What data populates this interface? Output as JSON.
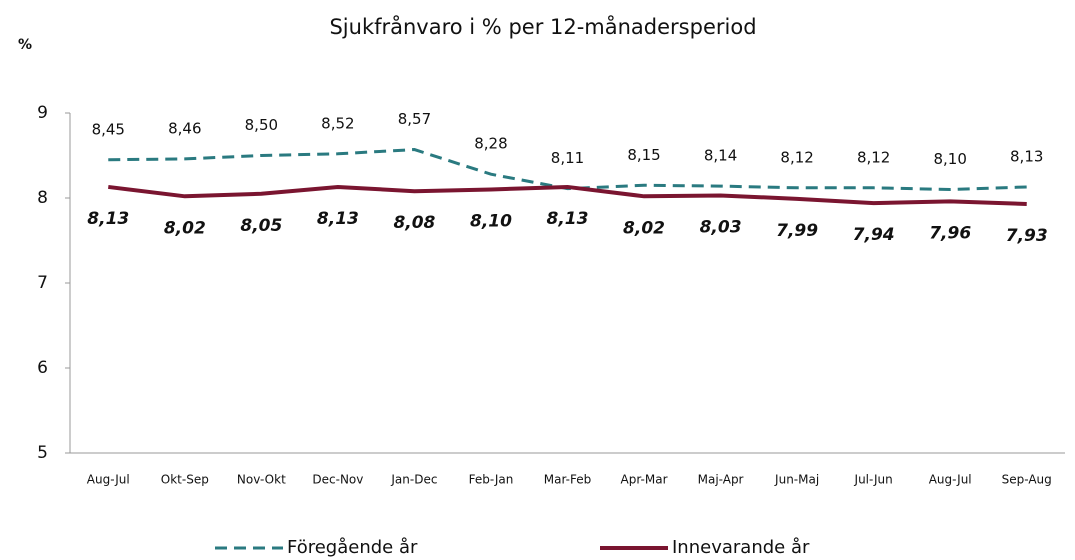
{
  "chart_data": {
    "type": "line",
    "title": "Sjukfrånvaro i % per 12-månadersperiod",
    "y_label": "%",
    "categories": [
      "Aug-Jul",
      "Okt-Sep",
      "Nov-Okt",
      "Dec-Nov",
      "Jan-Dec",
      "Feb-Jan",
      "Mar-Feb",
      "Apr-Mar",
      "Maj-Apr",
      "Jun-Maj",
      "Jul-Jun",
      "Aug-Jul",
      "Sep-Aug"
    ],
    "series": [
      {
        "name": "Föregående år",
        "color": "#2a7a80",
        "dashed": true,
        "values": [
          8.45,
          8.46,
          8.5,
          8.52,
          8.57,
          8.28,
          8.11,
          8.15,
          8.14,
          8.12,
          8.12,
          8.1,
          8.13
        ],
        "value_labels": [
          "8,45",
          "8,46",
          "8,50",
          "8,52",
          "8,57",
          "8,28",
          "8,11",
          "8,15",
          "8,14",
          "8,12",
          "8,12",
          "8,10",
          "8,13"
        ]
      },
      {
        "name": "Innevarande år",
        "color": "#7a1530",
        "dashed": false,
        "values": [
          8.13,
          8.02,
          8.05,
          8.13,
          8.08,
          8.1,
          8.13,
          8.02,
          8.03,
          7.99,
          7.94,
          7.96,
          7.93
        ],
        "value_labels": [
          "8,13",
          "8,02",
          "8,05",
          "8,13",
          "8,08",
          "8,10",
          "8,13",
          "8,02",
          "8,03",
          "7,99",
          "7,94",
          "7,96",
          "7,93"
        ]
      }
    ],
    "ylim": [
      5,
      9
    ],
    "yticks": [
      5,
      6,
      7,
      8,
      9
    ],
    "grid": false,
    "legend": "bottom"
  }
}
